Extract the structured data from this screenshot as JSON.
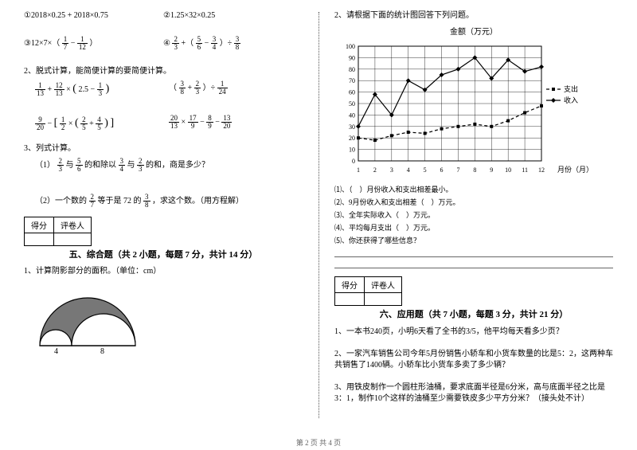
{
  "left": {
    "q1a": "①2018×0.25 + 2018×0.75",
    "q1b": "②1.25×32×0.25",
    "q1c_pre": "③12×7×（",
    "q1c_f1": {
      "n": "1",
      "d": "7"
    },
    "q1c_mid": " − ",
    "q1c_f2": {
      "n": "1",
      "d": "12"
    },
    "q1c_post": "）",
    "q1d_pre": "④",
    "q1d_f1": {
      "n": "2",
      "d": "3"
    },
    "q1d_mid1": " +（",
    "q1d_f2": {
      "n": "5",
      "d": "6"
    },
    "q1d_mid2": " − ",
    "q1d_f3": {
      "n": "3",
      "d": "4"
    },
    "q1d_mid3": "）÷ ",
    "q1d_f4": {
      "n": "3",
      "d": "8"
    },
    "q2_title": "2、脱式计算，能简便计算的要简便计算。",
    "q2a_f1": {
      "n": "1",
      "d": "13"
    },
    "q2a_p1": " + ",
    "q2a_f2": {
      "n": "12",
      "d": "13"
    },
    "q2a_p2": "×",
    "q2a_b1": "(",
    "q2a_f3": {
      "n": "",
      "d": ""
    },
    "q2a_txt": "2.5 − ",
    "q2a_f4": {
      "n": "1",
      "d": "3"
    },
    "q2a_b2": ")",
    "q2b_b1": "（",
    "q2b_f1": {
      "n": "3",
      "d": "8"
    },
    "q2b_p1": " + ",
    "q2b_f2": {
      "n": "2",
      "d": "3"
    },
    "q2b_b2": "）÷ ",
    "q2b_f3": {
      "n": "1",
      "d": "24"
    },
    "q2c_f1": {
      "n": "9",
      "d": "20"
    },
    "q2c_p1": " − ",
    "q2c_b1": "[",
    "q2c_f2": {
      "n": "1",
      "d": "2"
    },
    "q2c_p2": "×",
    "q2c_b2": "(",
    "q2c_f3": {
      "n": "2",
      "d": "5"
    },
    "q2c_p3": " + ",
    "q2c_f4": {
      "n": "4",
      "d": "5"
    },
    "q2c_b3": ")",
    "q2c_b4": "]",
    "q2d_f1": {
      "n": "20",
      "d": "13"
    },
    "q2d_p1": "×",
    "q2d_f2": {
      "n": "17",
      "d": "9"
    },
    "q2d_p2": " − ",
    "q2d_f3": {
      "n": "8",
      "d": "9"
    },
    "q2d_p3": " − ",
    "q2d_f4": {
      "n": "13",
      "d": "20"
    },
    "q3_title": "3、列式计算。",
    "q3a_pre": "（1）",
    "q3a_f1": {
      "n": "2",
      "d": "3"
    },
    "q3a_t1": "与",
    "q3a_f2": {
      "n": "5",
      "d": "6"
    },
    "q3a_t2": "的和除以",
    "q3a_f3": {
      "n": "3",
      "d": "4"
    },
    "q3a_t3": "与",
    "q3a_f4": {
      "n": "2",
      "d": "3"
    },
    "q3a_t4": "的和，商是多少？",
    "q3b_pre": "（2）一个数的",
    "q3b_f1": {
      "n": "2",
      "d": "7"
    },
    "q3b_t1": "等于是 72 的",
    "q3b_f2": {
      "n": "3",
      "d": "8"
    },
    "q3b_t2": "，求这个数。（用方程解）",
    "score1": "得分",
    "score2": "评卷人",
    "sec5": "五、综合题（共 2 小题，每题 7 分，共计 14 分）",
    "q5_1": "1、计算阴影部分的面积。（单位：cm）",
    "shape": {
      "base_left": "4",
      "base_right": "8"
    }
  },
  "right": {
    "q2_title": "2、请根据下面的统计图回答下列问题。",
    "chart": {
      "title": "金额（万元）",
      "xlabel": "月份（月）",
      "x": [
        "1",
        "2",
        "3",
        "4",
        "5",
        "6",
        "7",
        "8",
        "9",
        "10",
        "11",
        "12"
      ],
      "ytick": [
        0,
        10,
        20,
        30,
        40,
        50,
        60,
        70,
        80,
        90,
        100
      ],
      "series": [
        {
          "name": "支出",
          "style": "dash",
          "marker": "square",
          "values": [
            20,
            18,
            22,
            25,
            24,
            28,
            30,
            32,
            30,
            35,
            42,
            48
          ]
        },
        {
          "name": "收入",
          "style": "solid",
          "marker": "diamond",
          "values": [
            30,
            58,
            40,
            70,
            62,
            75,
            80,
            90,
            72,
            88,
            78,
            82
          ]
        }
      ],
      "legend": [
        "支出",
        "收入"
      ],
      "grid_color": "#000",
      "bg": "#ffffff",
      "fontsize": 9
    },
    "sub": {
      "i1": "⑴、（　）月份收入和支出相差最小。",
      "i2": "⑵、9月份收入和支出相差（　）万元。",
      "i3": "⑶、全年实际收入（　）万元。",
      "i4": "⑷、平均每月支出（　）万元。",
      "i5": "⑸、你还获得了哪些信息？"
    },
    "score1": "得分",
    "score2": "评卷人",
    "sec6": "六、应用题（共 7 小题，每题 3 分，共计 21 分）",
    "app1": "1、一本书240页，小明6天看了全书的3/5，他平均每天看多少页？",
    "app2": "2、一家汽车销售公司今年5月份销售小轿车和小货车数量的比是5：2，这两种车共销售了1400辆。小轿车比小货车多卖了多少辆？",
    "app3": "3、用铁皮制作一个圆柱形油桶，要求底面半径是6分米，高与底面半径之比是3：1，制作10个这样的油桶至少需要铁皮多少平方分米？（接头处不计）"
  },
  "footer": "第 2 页 共 4 页"
}
